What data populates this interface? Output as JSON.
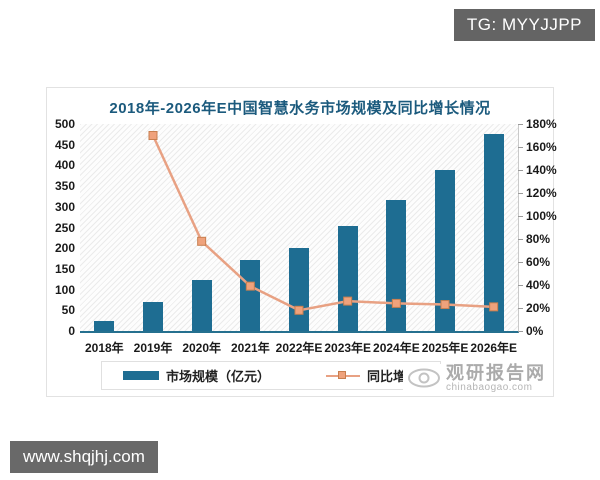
{
  "badge": {
    "text": "TG: MYYJJPP"
  },
  "footer": {
    "url": "www.shqjhj.com"
  },
  "watermark": {
    "name": "观研报告网",
    "domain": "chinabaogao.com"
  },
  "chart_data": {
    "type": "bar",
    "title": "2018年-2026年E中国智慧水务市场规模及同比增长情况",
    "categories": [
      "2018年",
      "2019年",
      "2020年",
      "2021年",
      "2022年E",
      "2023年E",
      "2024年E",
      "2025年E",
      "2026年E"
    ],
    "series": [
      {
        "name": "市场规模（亿元）",
        "type": "bar",
        "axis": "left",
        "values": [
          25,
          69,
          123,
          171,
          201,
          254,
          316,
          389,
          475
        ],
        "color": "#1e6d92"
      },
      {
        "name": "同比增长",
        "type": "line",
        "axis": "right",
        "values": [
          null,
          170,
          78,
          39,
          18,
          26,
          24,
          23,
          21
        ],
        "color": "#e8a183",
        "marker_fill": "#efa27c",
        "marker_border": "#c87f4f"
      }
    ],
    "left_axis": {
      "min": 0,
      "max": 500,
      "step": 50,
      "ticks": [
        "0",
        "50",
        "100",
        "150",
        "200",
        "250",
        "300",
        "350",
        "400",
        "450",
        "500"
      ]
    },
    "right_axis": {
      "min": 0,
      "max": 180,
      "step": 20,
      "ticks": [
        "0%",
        "20%",
        "40%",
        "60%",
        "80%",
        "100%",
        "120%",
        "140%",
        "160%",
        "180%"
      ]
    },
    "legend_position": "bottom",
    "grid": false,
    "title_color": "#1b5a7d"
  }
}
